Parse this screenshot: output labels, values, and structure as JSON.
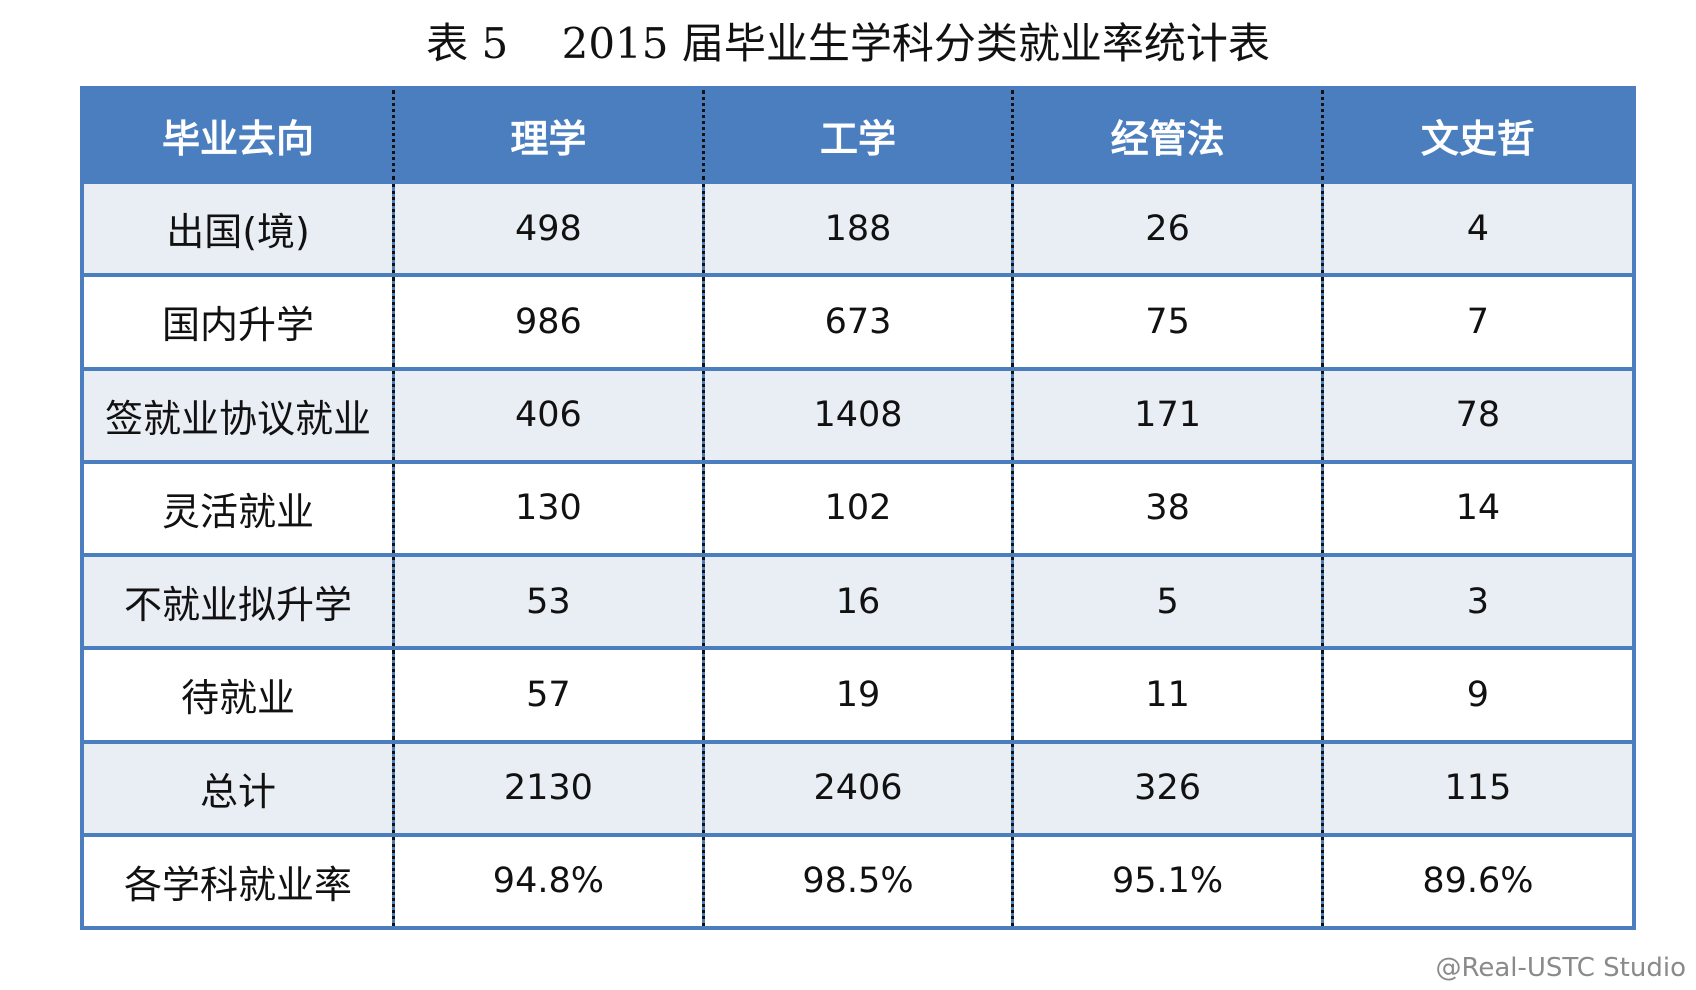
{
  "title": "表 5    2015 届毕业生学科分类就业率统计表",
  "colors": {
    "header_bg": "#4a7ebf",
    "header_text": "#ffffff",
    "row_shaded": "#e9edf4",
    "row_plain": "#ffffff",
    "separator": "#111111"
  },
  "table": {
    "headers": [
      "毕业去向",
      "理学",
      "工学",
      "经管法",
      "文史哲"
    ],
    "rows": [
      {
        "label": "出国(境)",
        "cells": [
          "498",
          "188",
          "26",
          "4"
        ]
      },
      {
        "label": "国内升学",
        "cells": [
          "986",
          "673",
          "75",
          "7"
        ]
      },
      {
        "label": "签就业协议就业",
        "cells": [
          "406",
          "1408",
          "171",
          "78"
        ]
      },
      {
        "label": "灵活就业",
        "cells": [
          "130",
          "102",
          "38",
          "14"
        ]
      },
      {
        "label": "不就业拟升学",
        "cells": [
          "53",
          "16",
          "5",
          "3"
        ]
      },
      {
        "label": "待就业",
        "cells": [
          "57",
          "19",
          "11",
          "9"
        ]
      },
      {
        "label": "总计",
        "cells": [
          "2130",
          "2406",
          "326",
          "115"
        ]
      },
      {
        "label": "各学科就业率",
        "cells": [
          "94.8%",
          "98.5%",
          "95.1%",
          "89.6%"
        ]
      }
    ]
  },
  "watermark": "@Real-USTC Studio"
}
